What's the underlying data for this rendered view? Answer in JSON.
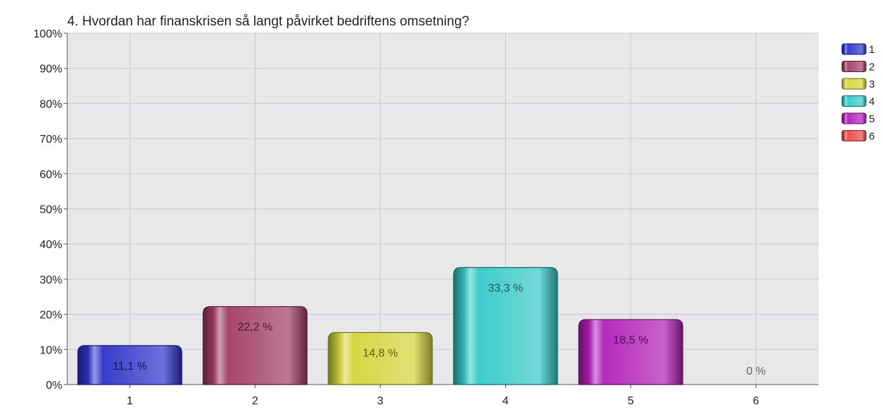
{
  "chart_data": {
    "type": "bar",
    "title": "4. Hvordan har finanskrisen så langt påvirket bedriftens omsetning?",
    "xlabel": "",
    "ylabel": "",
    "categories": [
      "1",
      "2",
      "3",
      "4",
      "5",
      "6"
    ],
    "values": [
      11.1,
      22.2,
      14.8,
      33.3,
      18.5,
      0
    ],
    "value_labels": [
      "11,1 %",
      "22,2 %",
      "14,8 %",
      "33,3 %",
      "18,5 %",
      "0 %"
    ],
    "ylim": [
      0,
      100
    ],
    "y_ticks": [
      0,
      10,
      20,
      30,
      40,
      50,
      60,
      70,
      80,
      90,
      100
    ],
    "y_tick_labels": [
      "0%",
      "10%",
      "20%",
      "30%",
      "40%",
      "50%",
      "60%",
      "70%",
      "80%",
      "90%",
      "100%"
    ],
    "grid": true,
    "legend_position": "right",
    "legend": [
      "1",
      "2",
      "3",
      "4",
      "5",
      "6"
    ],
    "colors": [
      "#2e33c8",
      "#a23c66",
      "#d4d43a",
      "#35c8c8",
      "#b21fb8",
      "#e8464c"
    ],
    "plot_background": "#e8e8ea"
  }
}
